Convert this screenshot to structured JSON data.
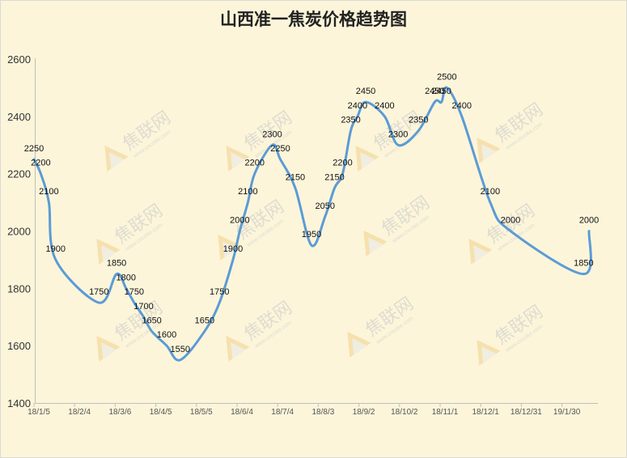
{
  "chart_data": {
    "type": "line",
    "title": "山西准一焦炭价格趋势图",
    "xlabel": "",
    "ylabel": "",
    "ylim": [
      1400,
      2600
    ],
    "yticks": [
      1400,
      1600,
      1800,
      2000,
      2200,
      2400,
      2600
    ],
    "xticks": [
      "18/1/5",
      "18/2/4",
      "18/3/6",
      "18/4/5",
      "18/5/5",
      "18/6/4",
      "18/7/4",
      "18/8/3",
      "18/9/2",
      "18/10/2",
      "18/11/1",
      "18/12/1",
      "18/12/31",
      "19/1/30"
    ],
    "grid": "none",
    "legend": "none",
    "line_color": "#5b9bd5",
    "series": [
      {
        "name": "",
        "points": [
          {
            "x": "2018-01-05",
            "y": 2250,
            "label": "2250"
          },
          {
            "x": "2018-01-10",
            "y": 2200,
            "label": "2200"
          },
          {
            "x": "2018-01-16",
            "y": 2100,
            "label": "2100"
          },
          {
            "x": "2018-01-21",
            "y": 1900,
            "label": "1900"
          },
          {
            "x": "2018-02-22",
            "y": 1750,
            "label": "1750"
          },
          {
            "x": "2018-03-07",
            "y": 1850,
            "label": "1850"
          },
          {
            "x": "2018-03-14",
            "y": 1800,
            "label": "1800"
          },
          {
            "x": "2018-03-20",
            "y": 1750,
            "label": "1750"
          },
          {
            "x": "2018-03-27",
            "y": 1700,
            "label": "1700"
          },
          {
            "x": "2018-04-02",
            "y": 1650,
            "label": "1650"
          },
          {
            "x": "2018-04-13",
            "y": 1600,
            "label": "1600"
          },
          {
            "x": "2018-04-23",
            "y": 1550,
            "label": "1550"
          },
          {
            "x": "2018-05-11",
            "y": 1650,
            "label": "1650"
          },
          {
            "x": "2018-05-22",
            "y": 1750,
            "label": "1750"
          },
          {
            "x": "2018-06-01",
            "y": 1900,
            "label": "1900"
          },
          {
            "x": "2018-06-06",
            "y": 2000,
            "label": "2000"
          },
          {
            "x": "2018-06-12",
            "y": 2100,
            "label": "2100"
          },
          {
            "x": "2018-06-17",
            "y": 2200,
            "label": "2200"
          },
          {
            "x": "2018-06-30",
            "y": 2300,
            "label": "2300"
          },
          {
            "x": "2018-07-06",
            "y": 2250,
            "label": "2250"
          },
          {
            "x": "2018-07-17",
            "y": 2150,
            "label": "2150"
          },
          {
            "x": "2018-07-29",
            "y": 1950,
            "label": "1950"
          },
          {
            "x": "2018-08-08",
            "y": 2050,
            "label": "2050"
          },
          {
            "x": "2018-08-15",
            "y": 2150,
            "label": "2150"
          },
          {
            "x": "2018-08-21",
            "y": 2200,
            "label": "2200"
          },
          {
            "x": "2018-08-27",
            "y": 2350,
            "label": "2350"
          },
          {
            "x": "2018-09-01",
            "y": 2400,
            "label": "2400"
          },
          {
            "x": "2018-09-07",
            "y": 2450,
            "label": "2450"
          },
          {
            "x": "2018-09-21",
            "y": 2400,
            "label": "2400"
          },
          {
            "x": "2018-10-01",
            "y": 2300,
            "label": "2300"
          },
          {
            "x": "2018-10-16",
            "y": 2350,
            "label": "2350"
          },
          {
            "x": "2018-10-28",
            "y": 2450,
            "label": "2450"
          },
          {
            "x": "2018-11-02",
            "y": 2450,
            "label": "2450"
          },
          {
            "x": "2018-11-06",
            "y": 2500,
            "label": "2500"
          },
          {
            "x": "2018-11-17",
            "y": 2400,
            "label": "2400"
          },
          {
            "x": "2018-12-08",
            "y": 2100,
            "label": "2100"
          },
          {
            "x": "2018-12-23",
            "y": 2000,
            "label": "2000"
          },
          {
            "x": "2019-02-15",
            "y": 1850,
            "label": "1850"
          },
          {
            "x": "2019-02-19",
            "y": 2000,
            "label": "2000"
          }
        ]
      }
    ]
  },
  "watermark": {
    "text": "焦联网",
    "url": "www.cncoke.com",
    "icon": "triangle-logo-icon"
  }
}
